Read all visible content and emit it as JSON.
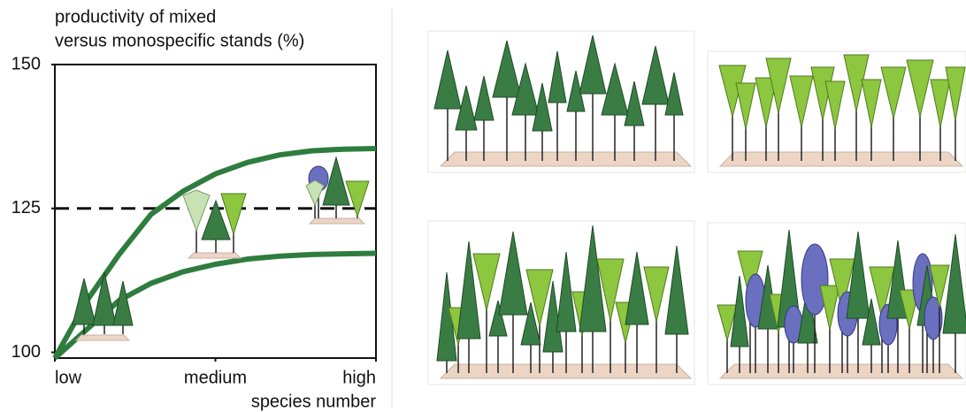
{
  "chart_data": {
    "type": "line",
    "ylabel": [
      "productivity of mixed",
      "versus monospecific stands (%)"
    ],
    "xlabel": "species number",
    "x": [
      0,
      1,
      2,
      3,
      4,
      5,
      6,
      7,
      8,
      9,
      10
    ],
    "xlim": [
      0,
      10
    ],
    "xticks": [
      {
        "value": 0,
        "label": "low"
      },
      {
        "value": 5,
        "label": "medium"
      },
      {
        "value": 10,
        "label": "high"
      }
    ],
    "ylim": [
      99,
      150
    ],
    "yticks": [
      100,
      125,
      150
    ],
    "reference_line": 125,
    "series": [
      {
        "color": "#2e7d3e",
        "values": [
          99,
          109,
          117,
          124,
          128,
          131,
          133,
          134.3,
          135,
          135.3,
          135.4
        ]
      },
      {
        "color": "#2e7d3e",
        "values": [
          99,
          104,
          109,
          112,
          114,
          115.3,
          116.2,
          116.7,
          117,
          117.1,
          117.2
        ]
      }
    ]
  }
}
